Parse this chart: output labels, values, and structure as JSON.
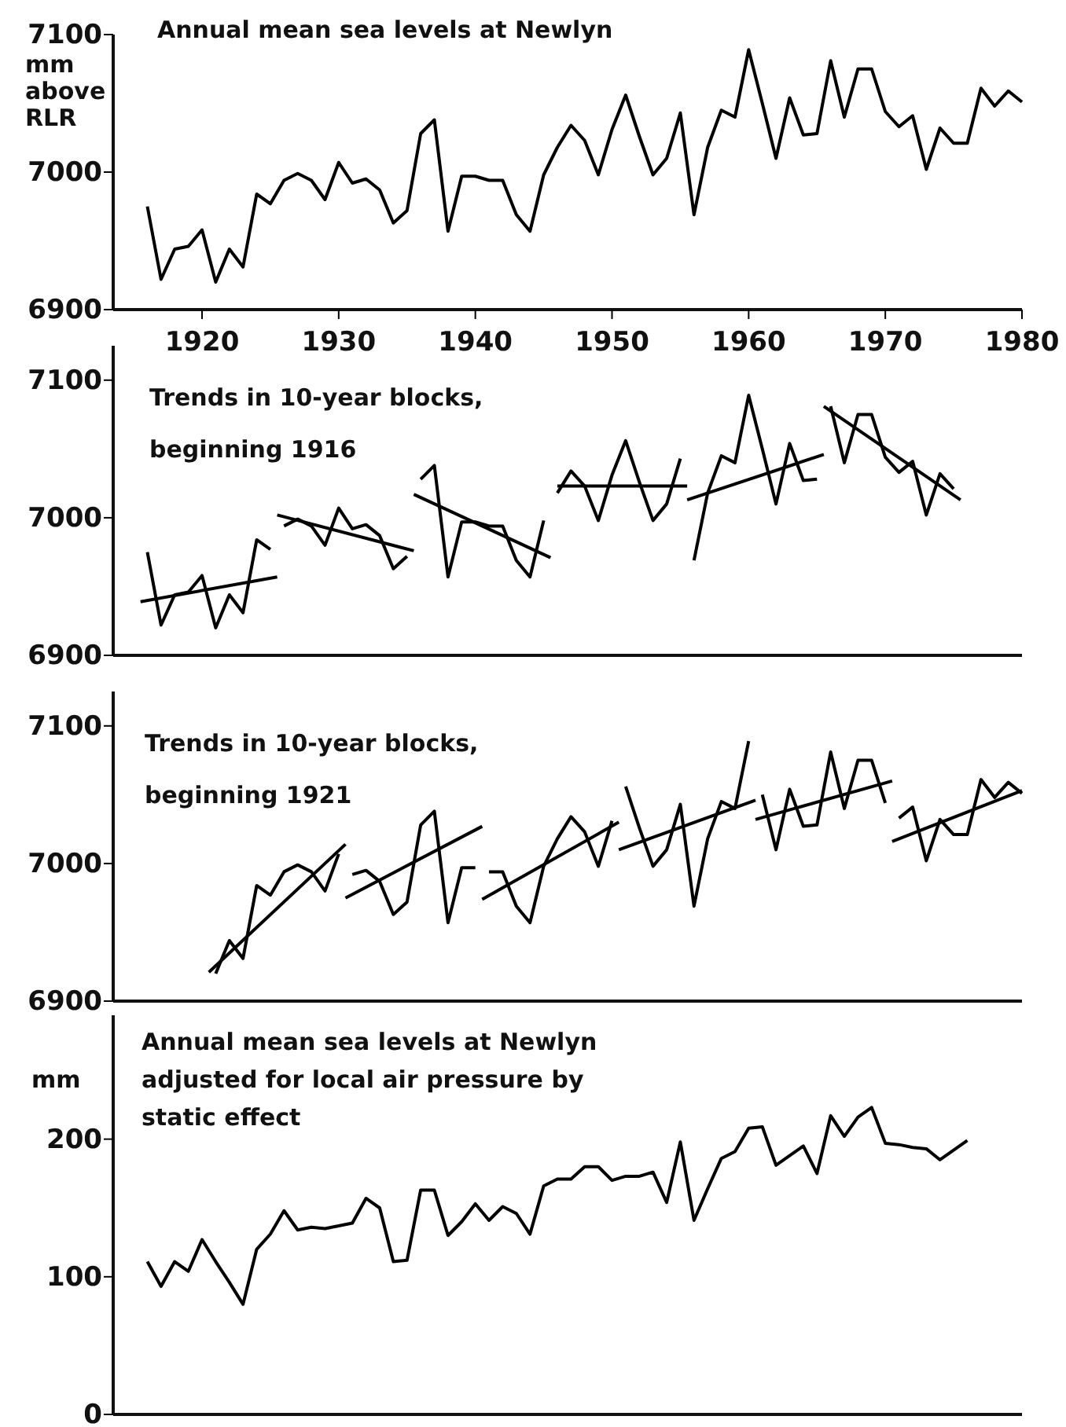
{
  "chart_data": [
    {
      "type": "line",
      "title": "Annual mean sea levels at Newlyn",
      "ylabel": "mm above RLR",
      "xlim": [
        1913.5,
        1980
      ],
      "xticks": [
        1920,
        1930,
        1940,
        1950,
        1960,
        1970,
        1980
      ],
      "ylim": [
        6900,
        7100
      ],
      "yticks": [
        6900,
        7000,
        7100
      ],
      "x": [
        1916,
        1917,
        1918,
        1919,
        1920,
        1921,
        1922,
        1923,
        1924,
        1925,
        1926,
        1927,
        1928,
        1929,
        1930,
        1931,
        1932,
        1933,
        1934,
        1935,
        1936,
        1937,
        1938,
        1939,
        1940,
        1941,
        1942,
        1943,
        1944,
        1945,
        1946,
        1947,
        1948,
        1949,
        1950,
        1951,
        1952,
        1953,
        1954,
        1955,
        1956,
        1957,
        1958,
        1959,
        1960,
        1961,
        1962,
        1963,
        1964,
        1965,
        1966,
        1967,
        1968,
        1969,
        1970,
        1971,
        1972,
        1973,
        1974,
        1975,
        1976,
        1977,
        1978,
        1979,
        1980
      ],
      "series": [
        {
          "color": "#000000",
          "values": [
            6975,
            6922,
            6944,
            6946,
            6958,
            6920,
            6944,
            6931,
            6984,
            6977,
            6994,
            6999,
            6994,
            6980,
            7007,
            6992,
            6995,
            6987,
            6963,
            6972,
            7028,
            7038,
            6957,
            6997,
            6997,
            6994,
            6994,
            6969,
            6957,
            6998,
            7018,
            7034,
            7023,
            6998,
            7031,
            7056,
            7026,
            6998,
            7010,
            7043,
            6969,
            7018,
            7045,
            7040,
            7089,
            7050,
            7010,
            7054,
            7027,
            7028,
            7081,
            7040,
            7075,
            7075,
            7044,
            7033,
            7041,
            7002,
            7032,
            7021,
            7021,
            7061,
            7048,
            7059,
            7051
          ]
        }
      ]
    },
    {
      "type": "line",
      "title": "Trends in 10-year blocks, beginning 1916",
      "xlim": [
        1913.5,
        1980
      ],
      "ylim": [
        6900,
        7125
      ],
      "yticks": [
        6900,
        7000,
        7100
      ],
      "tick_labels": "y",
      "series": [
        {
          "color": "#000000",
          "x": [
            1916,
            1917,
            1918,
            1919,
            1920,
            1921,
            1922,
            1923,
            1924,
            1925
          ],
          "values": [
            6975,
            6922,
            6944,
            6946,
            6958,
            6920,
            6944,
            6931,
            6984,
            6977
          ]
        },
        {
          "color": "#000000",
          "x": [
            1926,
            1927,
            1928,
            1929,
            1930,
            1931,
            1932,
            1933,
            1934,
            1935
          ],
          "values": [
            6994,
            6999,
            6994,
            6980,
            7007,
            6992,
            6995,
            6987,
            6963,
            6972
          ]
        },
        {
          "color": "#000000",
          "x": [
            1936,
            1937,
            1938,
            1939,
            1940,
            1941,
            1942,
            1943,
            1944,
            1945
          ],
          "values": [
            7028,
            7038,
            6957,
            6997,
            6997,
            6994,
            6994,
            6969,
            6957,
            6998
          ]
        },
        {
          "color": "#000000",
          "x": [
            1946,
            1947,
            1948,
            1949,
            1950,
            1951,
            1952,
            1953,
            1954,
            1955
          ],
          "values": [
            7018,
            7034,
            7023,
            6998,
            7031,
            7056,
            7026,
            6998,
            7010,
            7043
          ]
        },
        {
          "color": "#000000",
          "x": [
            1956,
            1957,
            1958,
            1959,
            1960,
            1961,
            1962,
            1963,
            1964,
            1965
          ],
          "values": [
            6969,
            7018,
            7045,
            7040,
            7089,
            7050,
            7010,
            7054,
            7027,
            7028
          ]
        },
        {
          "color": "#000000",
          "x": [
            1966,
            1967,
            1968,
            1969,
            1970,
            1971,
            1972,
            1973,
            1974,
            1975
          ],
          "values": [
            7081,
            7040,
            7075,
            7075,
            7044,
            7033,
            7041,
            7002,
            7032,
            7021
          ]
        },
        {
          "color": "#000000",
          "x": [
            1915.5,
            1925.5
          ],
          "values": [
            6939,
            6957
          ]
        },
        {
          "color": "#000000",
          "x": [
            1925.5,
            1935.5
          ],
          "values": [
            7002,
            6976
          ]
        },
        {
          "color": "#000000",
          "x": [
            1935.5,
            1945.5
          ],
          "values": [
            7017,
            6971
          ]
        },
        {
          "color": "#000000",
          "x": [
            1946,
            1955.5
          ],
          "values": [
            7023,
            7023
          ]
        },
        {
          "color": "#000000",
          "x": [
            1955.5,
            1965.5
          ],
          "values": [
            7013,
            7046
          ]
        },
        {
          "color": "#000000",
          "x": [
            1965.5,
            1975.5
          ],
          "values": [
            7081,
            7013
          ]
        }
      ]
    },
    {
      "type": "line",
      "title": "Trends in 10-year blocks, beginning 1921",
      "xlim": [
        1913.5,
        1980
      ],
      "ylim": [
        6900,
        7125
      ],
      "yticks": [
        6900,
        7000,
        7100
      ],
      "tick_labels": "y",
      "series": [
        {
          "color": "#000000",
          "x": [
            1921,
            1922,
            1923,
            1924,
            1925,
            1926,
            1927,
            1928,
            1929,
            1930
          ],
          "values": [
            6920,
            6944,
            6931,
            6984,
            6977,
            6994,
            6999,
            6994,
            6980,
            7007
          ]
        },
        {
          "color": "#000000",
          "x": [
            1931,
            1932,
            1933,
            1934,
            1935,
            1936,
            1937,
            1938,
            1939,
            1940
          ],
          "values": [
            6992,
            6995,
            6987,
            6963,
            6972,
            7028,
            7038,
            6957,
            6997,
            6997
          ]
        },
        {
          "color": "#000000",
          "x": [
            1941,
            1942,
            1943,
            1944,
            1945,
            1946,
            1947,
            1948,
            1949,
            1950
          ],
          "values": [
            6994,
            6994,
            6969,
            6957,
            6998,
            7018,
            7034,
            7023,
            6998,
            7031
          ]
        },
        {
          "color": "#000000",
          "x": [
            1951,
            1952,
            1953,
            1954,
            1955,
            1956,
            1957,
            1958,
            1959,
            1960
          ],
          "values": [
            7056,
            7026,
            6998,
            7010,
            7043,
            6969,
            7018,
            7045,
            7040,
            7089
          ]
        },
        {
          "color": "#000000",
          "x": [
            1961,
            1962,
            1963,
            1964,
            1965,
            1966,
            1967,
            1968,
            1969,
            1970
          ],
          "values": [
            7050,
            7010,
            7054,
            7027,
            7028,
            7081,
            7040,
            7075,
            7075,
            7044
          ]
        },
        {
          "color": "#000000",
          "x": [
            1971,
            1972,
            1973,
            1974,
            1975,
            1976,
            1977,
            1978,
            1979,
            1980
          ],
          "values": [
            7033,
            7041,
            7002,
            7032,
            7021,
            7021,
            7061,
            7048,
            7059,
            7051
          ]
        },
        {
          "color": "#000000",
          "x": [
            1920.5,
            1930.5
          ],
          "values": [
            6921,
            7014
          ]
        },
        {
          "color": "#000000",
          "x": [
            1930.5,
            1940.5
          ],
          "values": [
            6975,
            7027
          ]
        },
        {
          "color": "#000000",
          "x": [
            1940.5,
            1950.5
          ],
          "values": [
            6974,
            7030
          ]
        },
        {
          "color": "#000000",
          "x": [
            1950.5,
            1960.5
          ],
          "values": [
            7010,
            7046
          ]
        },
        {
          "color": "#000000",
          "x": [
            1960.5,
            1970.5
          ],
          "values": [
            7032,
            7060
          ]
        },
        {
          "color": "#000000",
          "x": [
            1970.5,
            1980
          ],
          "values": [
            7016,
            7053
          ]
        }
      ]
    },
    {
      "type": "line",
      "title": "Annual mean sea levels at Newlyn adjusted for local air pressure by static effect",
      "ylabel": "mm",
      "xlim": [
        1913.5,
        1980
      ],
      "ylim": [
        0,
        290
      ],
      "yticks": [
        0,
        100,
        200
      ],
      "tick_labels": "y",
      "x": [
        1916,
        1917,
        1918,
        1919,
        1920,
        1921,
        1922,
        1923,
        1924,
        1925,
        1926,
        1927,
        1928,
        1929,
        1930,
        1931,
        1932,
        1933,
        1934,
        1935,
        1936,
        1937,
        1938,
        1939,
        1940,
        1941,
        1942,
        1943,
        1944,
        1945,
        1946,
        1947,
        1948,
        1949,
        1950,
        1951,
        1952,
        1953,
        1954,
        1955,
        1956,
        1957,
        1958,
        1959,
        1960,
        1961,
        1962,
        1963,
        1964,
        1965,
        1966,
        1967,
        1968,
        1969,
        1970,
        1971,
        1972,
        1973,
        1974,
        1975,
        1976
      ],
      "series": [
        {
          "color": "#000000",
          "values": [
            111,
            93,
            111,
            104,
            127,
            111,
            96,
            80,
            120,
            131,
            148,
            134,
            136,
            135,
            137,
            139,
            157,
            150,
            111,
            112,
            163,
            163,
            130,
            140,
            153,
            141,
            151,
            146,
            131,
            166,
            171,
            171,
            180,
            180,
            170,
            173,
            173,
            176,
            154,
            198,
            141,
            164,
            186,
            191,
            208,
            209,
            181,
            188,
            195,
            175,
            217,
            202,
            216,
            223,
            197,
            196,
            194,
            193,
            185,
            192,
            199
          ]
        }
      ]
    }
  ]
}
